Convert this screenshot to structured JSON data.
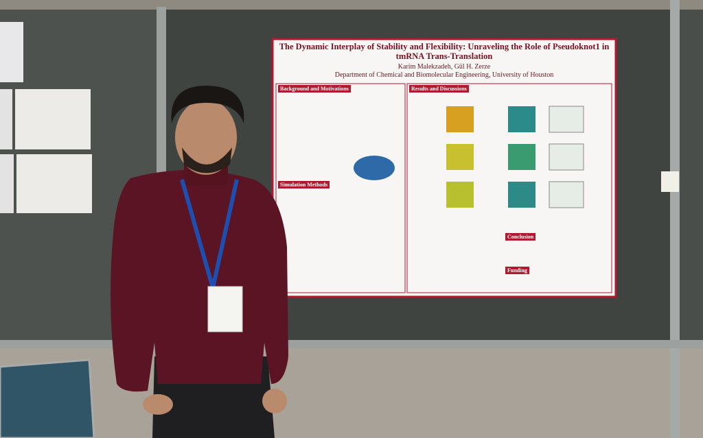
{
  "poster": {
    "title": "The Dynamic Interplay of Stability and Flexibility: Unraveling the Role of Pseudoknot1 in tmRNA Trans-Translation",
    "authors": "Karim Malekzadeh, Gül H. Zerze",
    "affiliation": "Department of Chemical and Biomolecular Engineering, University of Houston",
    "sections": [
      "Background and Motivations",
      "Simulation Methods",
      "Results and Discussions",
      "Conclusion",
      "Funding"
    ]
  }
}
